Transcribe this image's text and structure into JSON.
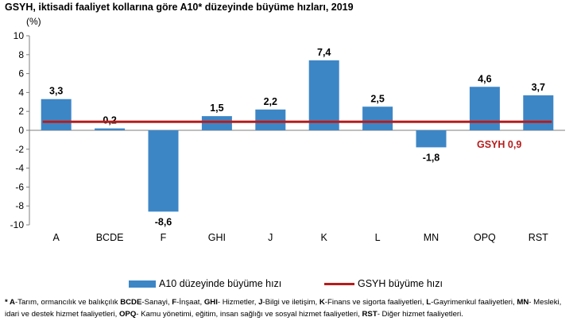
{
  "title": "GSYH, iktisadi faaliyet kollarına göre A10* düzeyinde büyüme hızları, 2019",
  "chart_data": {
    "type": "bar",
    "unit_label": "(%)",
    "categories": [
      "A",
      "BCDE",
      "F",
      "GHI",
      "J",
      "K",
      "L",
      "MN",
      "OPQ",
      "RST"
    ],
    "series": [
      {
        "name": "A10 düzeyinde büyüme hızı",
        "values": [
          3.3,
          0.2,
          -8.6,
          1.5,
          2.2,
          7.4,
          2.5,
          -1.8,
          4.6,
          3.7
        ],
        "data_labels": [
          "3,3",
          "0,2",
          "-8,6",
          "1,5",
          "2,2",
          "7,4",
          "2,5",
          "-1,8",
          "4,6",
          "3,7"
        ],
        "color": "#3d86c6"
      }
    ],
    "reference_line": {
      "name": "GSYH büyüme hızı",
      "value": 0.9,
      "label": "GSYH  0,9",
      "color": "#b71c1c"
    },
    "ylim": [
      -10,
      10
    ],
    "yticks": [
      10,
      8,
      6,
      4,
      2,
      0,
      -2,
      -4,
      -6,
      -8,
      -10
    ],
    "grid": false,
    "legend_position": "bottom"
  },
  "footnote": [
    {
      "abbr": "* A",
      "text": "-Tarım, ormancılık ve balıkçılık "
    },
    {
      "abbr": "BCDE",
      "text": "-Sanayi, "
    },
    {
      "abbr": "F",
      "text": "-İnşaat, "
    },
    {
      "abbr": "GHI",
      "text": "- Hizmetler, "
    },
    {
      "abbr": "J",
      "text": "-Bilgi ve iletişim, "
    },
    {
      "abbr": "K",
      "text": "-Finans ve sigorta faaliyetleri, "
    },
    {
      "abbr": "L",
      "text": "-Gayrimenkul faaliyetleri, "
    },
    {
      "abbr": "MN",
      "text": "- Mesleki, idari ve destek hizmet faaliyetleri, "
    },
    {
      "abbr": "OPQ",
      "text": "- Kamu yönetimi, eğitim, insan sağlığı ve sosyal hizmet faaliyetleri, "
    },
    {
      "abbr": "RST",
      "text": "- Diğer hizmet faaliyetleri."
    }
  ]
}
